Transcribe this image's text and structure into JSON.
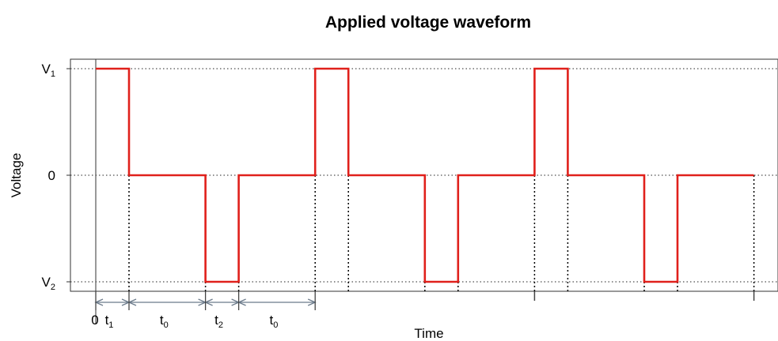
{
  "chart_data": {
    "type": "line",
    "title": "Applied voltage waveform",
    "xlabel": "Time",
    "ylabel": "Voltage",
    "xlim": [
      0,
      10
    ],
    "ylim": [
      -1,
      1
    ],
    "grid": false,
    "legend": "none",
    "y_ticks": [
      {
        "value": 1,
        "main": "V",
        "sub": "1"
      },
      {
        "value": 0,
        "main": "0",
        "sub": ""
      },
      {
        "value": -1,
        "main": "V",
        "sub": "2"
      }
    ],
    "x_ticks": [
      {
        "value": 0,
        "label": "0"
      }
    ],
    "series": [
      {
        "color": "#e0201b",
        "points": [
          [
            0,
            1
          ],
          [
            0.5,
            1
          ],
          [
            0.5,
            0
          ],
          [
            1.65,
            0
          ],
          [
            1.65,
            -1
          ],
          [
            2.15,
            -1
          ],
          [
            2.15,
            0
          ],
          [
            3.3,
            0
          ],
          [
            3.3,
            1
          ],
          [
            3.8,
            1
          ],
          [
            3.8,
            0
          ],
          [
            4.95,
            0
          ],
          [
            4.95,
            -1
          ],
          [
            5.45,
            -1
          ],
          [
            5.45,
            0
          ],
          [
            6.6,
            0
          ],
          [
            6.6,
            1
          ],
          [
            7.1,
            1
          ],
          [
            7.1,
            0
          ],
          [
            8.25,
            0
          ],
          [
            8.25,
            -1
          ],
          [
            8.75,
            -1
          ],
          [
            8.75,
            0
          ],
          [
            9.9,
            0
          ]
        ]
      }
    ],
    "reference_lines_y": [
      1,
      0,
      -1
    ],
    "dotted_verticals_x": [
      0.5,
      1.65,
      2.15,
      3.3,
      3.8,
      4.95,
      5.45,
      6.6,
      7.1,
      8.25,
      8.75,
      9.9
    ],
    "period_ticks_x": [
      6.6,
      9.9
    ],
    "intervals": [
      {
        "from": 0,
        "to": 0.5,
        "main": "t",
        "sub": "1"
      },
      {
        "from": 0.5,
        "to": 1.65,
        "main": "t",
        "sub": "0"
      },
      {
        "from": 1.65,
        "to": 2.15,
        "main": "t",
        "sub": "2"
      },
      {
        "from": 2.15,
        "to": 3.3,
        "main": "t",
        "sub": "0"
      }
    ]
  }
}
